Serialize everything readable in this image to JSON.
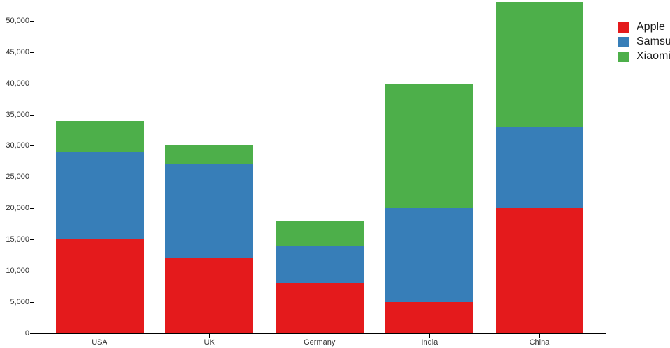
{
  "chart_data": {
    "type": "bar",
    "stacked": true,
    "title": "",
    "xlabel": "",
    "ylabel": "",
    "categories": [
      "USA",
      "UK",
      "Germany",
      "India",
      "China"
    ],
    "series": [
      {
        "name": "Apple",
        "color": "#e41a1c",
        "values": [
          15000,
          12000,
          8000,
          5000,
          20000
        ]
      },
      {
        "name": "Samsung",
        "color": "#377eb8",
        "values": [
          14000,
          15000,
          6000,
          15000,
          13000
        ]
      },
      {
        "name": "Xiaomi",
        "color": "#4daf4a",
        "values": [
          5000,
          3000,
          4000,
          20000,
          20000
        ]
      }
    ],
    "stack_totals": [
      34000,
      30000,
      18000,
      40000,
      53000
    ],
    "ylim": [
      0,
      50000
    ],
    "yticks": [
      0,
      5000,
      10000,
      15000,
      20000,
      25000,
      30000,
      35000,
      40000,
      45000,
      50000
    ],
    "ytick_labels": [
      "0",
      "5,000",
      "10,000",
      "15,000",
      "20,000",
      "25,000",
      "30,000",
      "35,000",
      "40,000",
      "45,000",
      "50,000"
    ],
    "grid": "off",
    "legend_position": "outside-top-right",
    "bar_clipping": "top bar (China) extends above the 50,000 axis top"
  },
  "colors": {
    "background": "#ffffff",
    "axis": "#000000",
    "tick_label_text": "#333333",
    "legend_text": "#1a1a1a"
  }
}
